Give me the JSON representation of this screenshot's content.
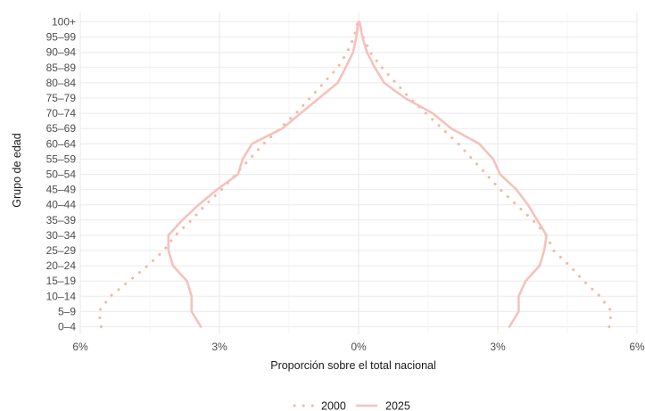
{
  "chart_data": {
    "type": "line",
    "title": "",
    "xlabel": "Proporción sobre el total nacional",
    "ylabel": "Grupo de edad",
    "xlim": [
      -6,
      6
    ],
    "x_ticks": [
      -6,
      -3,
      0,
      3,
      6
    ],
    "x_tick_labels": [
      "6%",
      "3%",
      "0%",
      "3%",
      "6%"
    ],
    "categories": [
      "0–4",
      "5–9",
      "10–14",
      "15–19",
      "20–24",
      "25–29",
      "30–34",
      "35–39",
      "40–44",
      "45–49",
      "50–54",
      "55–59",
      "60–64",
      "65–69",
      "70–74",
      "75–79",
      "80–84",
      "85–89",
      "90–94",
      "95–99",
      "100+"
    ],
    "grid": true,
    "legend_position": "bottom",
    "series": [
      {
        "name": "2000",
        "style": "dotted",
        "color": "#f4b6a6",
        "female": [
          5.4,
          5.45,
          5.2,
          4.85,
          4.55,
          4.2,
          4.05,
          3.75,
          3.4,
          3.05,
          2.75,
          2.45,
          2.15,
          1.8,
          1.45,
          1.1,
          0.8,
          0.5,
          0.25,
          0.1,
          0.02
        ],
        "male": [
          -5.55,
          -5.6,
          -5.35,
          -4.95,
          -4.55,
          -4.2,
          -3.95,
          -3.6,
          -3.3,
          -2.95,
          -2.65,
          -2.35,
          -2.05,
          -1.7,
          -1.35,
          -1.05,
          -0.75,
          -0.45,
          -0.25,
          -0.1,
          -0.02
        ]
      },
      {
        "name": "2025",
        "style": "solid",
        "color": "#f4c2bd",
        "female": [
          3.25,
          3.45,
          3.45,
          3.6,
          3.9,
          4.0,
          4.05,
          3.85,
          3.65,
          3.4,
          3.05,
          2.9,
          2.6,
          2.0,
          1.6,
          1.0,
          0.55,
          0.35,
          0.18,
          0.08,
          0.02
        ],
        "male": [
          -3.4,
          -3.6,
          -3.6,
          -3.7,
          -4.0,
          -4.1,
          -4.1,
          -3.8,
          -3.45,
          -3.05,
          -2.6,
          -2.5,
          -2.3,
          -1.65,
          -1.25,
          -0.85,
          -0.45,
          -0.28,
          -0.12,
          -0.05,
          -0.01
        ]
      }
    ]
  }
}
